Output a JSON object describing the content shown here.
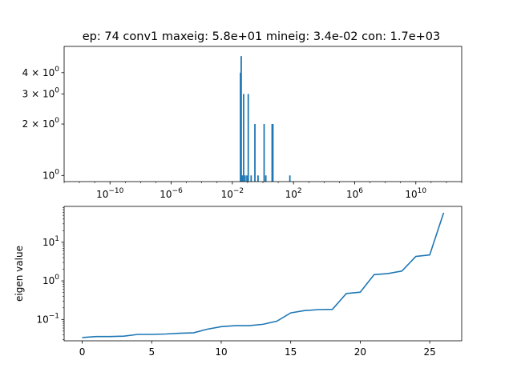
{
  "chart_data": [
    {
      "type": "bar",
      "title": "ep: 74 conv1 maxeig: 5.8e+01 mineig: 3.4e-02 con: 1.7e+03",
      "xlabel": "",
      "ylabel": "",
      "x_scale": "log",
      "y_scale": "log",
      "xlim": [
        1e-13,
        10000000000000.0
      ],
      "ylim": [
        0.92,
        5.7
      ],
      "x_ticks": [
        {
          "value": 1e-10,
          "base": "10",
          "exp": "−10"
        },
        {
          "value": 1e-06,
          "base": "10",
          "exp": "−6"
        },
        {
          "value": 0.01,
          "base": "10",
          "exp": "−2"
        },
        {
          "value": 100,
          "base": "10",
          "exp": "2"
        },
        {
          "value": 1000000.0,
          "base": "10",
          "exp": "6"
        },
        {
          "value": 10000000000.0,
          "base": "10",
          "exp": "10"
        }
      ],
      "y_ticks": [
        {
          "value": 1,
          "mant": "",
          "base": "10",
          "exp": "0"
        },
        {
          "value": 2,
          "mant": "2 × ",
          "base": "10",
          "exp": "0"
        },
        {
          "value": 3,
          "mant": "3 × ",
          "base": "10",
          "exp": "0"
        },
        {
          "value": 4,
          "mant": "4 × ",
          "base": "10",
          "exp": "0"
        }
      ],
      "bins": [
        {
          "x": 0.034,
          "count": 4
        },
        {
          "x": 0.038,
          "count": 5
        },
        {
          "x": 0.042,
          "count": 1
        },
        {
          "x": 0.045,
          "count": 1
        },
        {
          "x": 0.055,
          "count": 3
        },
        {
          "x": 0.068,
          "count": 1
        },
        {
          "x": 0.09,
          "count": 1
        },
        {
          "x": 0.11,
          "count": 3
        },
        {
          "x": 0.17,
          "count": 1
        },
        {
          "x": 0.3,
          "count": 2
        },
        {
          "x": 0.48,
          "count": 1
        },
        {
          "x": 1.2,
          "count": 2
        },
        {
          "x": 1.55,
          "count": 1
        },
        {
          "x": 4.0,
          "count": 2
        },
        {
          "x": 4.5,
          "count": 2
        },
        {
          "x": 58,
          "count": 1
        }
      ],
      "bar_color": "#1f77b4"
    },
    {
      "type": "line",
      "title": "",
      "xlabel": "",
      "ylabel": "eigen value",
      "y_scale": "log",
      "xlim": [
        -1.3,
        27.3
      ],
      "ylim": [
        0.028,
        85
      ],
      "x_ticks": [
        0,
        5,
        10,
        15,
        20,
        25
      ],
      "y_ticks": [
        {
          "value": 0.1,
          "base": "10",
          "exp": "−1"
        },
        {
          "value": 1,
          "base": "10",
          "exp": "0"
        },
        {
          "value": 10,
          "base": "10",
          "exp": "1"
        }
      ],
      "series": [
        {
          "color": "#1f77b4",
          "x": [
            0,
            1,
            2,
            3,
            4,
            5,
            6,
            7,
            8,
            9,
            10,
            11,
            12,
            13,
            14,
            15,
            16,
            17,
            18,
            19,
            20,
            21,
            22,
            23,
            24,
            25,
            26
          ],
          "y": [
            0.034,
            0.036,
            0.036,
            0.037,
            0.041,
            0.041,
            0.042,
            0.044,
            0.045,
            0.056,
            0.065,
            0.069,
            0.069,
            0.075,
            0.09,
            0.148,
            0.17,
            0.18,
            0.183,
            0.47,
            0.51,
            1.45,
            1.55,
            1.8,
            4.3,
            4.7,
            58
          ]
        }
      ]
    }
  ]
}
